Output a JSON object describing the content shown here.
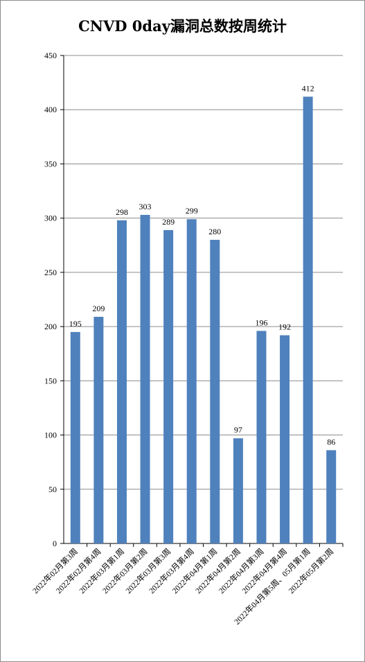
{
  "chart_data": {
    "type": "bar",
    "title": "CNVD 0day漏洞总数按周统计",
    "categories": [
      "2022年02月第3周",
      "2022年02月第4周",
      "2022年03月第1周",
      "2022年03月第2周",
      "2022年03月第3周",
      "2022年03月第4周",
      "2022年04月第1周",
      "2022年04月第2周",
      "2022年04月第3周",
      "2022年04月第4周",
      "2022年04月第5周、05月第1周",
      "2022年05月第2周"
    ],
    "values": [
      195,
      209,
      298,
      303,
      289,
      299,
      280,
      97,
      196,
      192,
      412,
      86
    ],
    "ylim": [
      0,
      450
    ],
    "yticks": [
      0,
      50,
      100,
      150,
      200,
      250,
      300,
      350,
      400,
      450
    ],
    "grid": true,
    "legend": "none",
    "bar_color": "#4f81bd",
    "grid_color": "#8c8c8c"
  }
}
